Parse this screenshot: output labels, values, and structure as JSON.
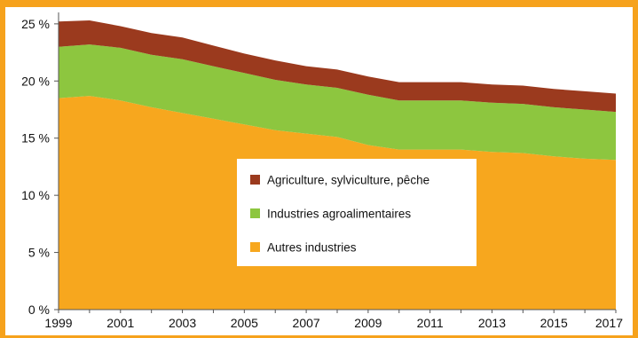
{
  "chart_data": {
    "type": "area",
    "stacked": true,
    "x": [
      1999,
      2000,
      2001,
      2002,
      2003,
      2004,
      2005,
      2006,
      2007,
      2008,
      2009,
      2010,
      2011,
      2012,
      2013,
      2014,
      2015,
      2016,
      2017
    ],
    "x_tick_labels": [
      "1999",
      "2001",
      "2003",
      "2005",
      "2007",
      "2009",
      "2011",
      "2013",
      "2015",
      "2017"
    ],
    "y_tick_labels": [
      "0 %",
      "5 %",
      "10 %",
      "15 %",
      "20 %",
      "25 %"
    ],
    "ylim": [
      0,
      26
    ],
    "y_ticks": [
      0,
      5,
      10,
      15,
      20,
      25
    ],
    "legend_position": "center",
    "series": [
      {
        "name": "Autres industries",
        "color": "#f7a71e",
        "values": [
          18.5,
          18.7,
          18.3,
          17.7,
          17.2,
          16.7,
          16.2,
          15.7,
          15.4,
          15.1,
          14.4,
          14.0,
          14.0,
          14.0,
          13.8,
          13.7,
          13.4,
          13.2,
          13.1
        ]
      },
      {
        "name": "Industries agroalimentaires",
        "color": "#8dc63f",
        "values": [
          4.5,
          4.5,
          4.6,
          4.6,
          4.7,
          4.6,
          4.5,
          4.4,
          4.3,
          4.3,
          4.4,
          4.3,
          4.3,
          4.3,
          4.3,
          4.3,
          4.3,
          4.3,
          4.2
        ]
      },
      {
        "name": "Agriculture, sylviculture, pêche",
        "color": "#9b3a1e",
        "values": [
          2.2,
          2.1,
          1.9,
          1.9,
          1.9,
          1.8,
          1.7,
          1.7,
          1.6,
          1.6,
          1.6,
          1.6,
          1.6,
          1.6,
          1.6,
          1.6,
          1.6,
          1.6,
          1.6
        ]
      }
    ],
    "legend_order": [
      "Agriculture, sylviculture, pêche",
      "Industries agroalimentaires",
      "Autres industries"
    ]
  }
}
